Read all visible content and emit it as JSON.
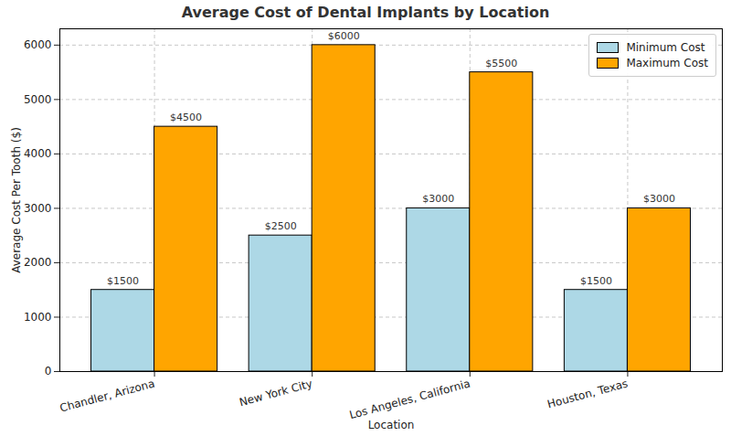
{
  "chart_data": {
    "type": "bar",
    "title": "Average Cost of Dental Implants by Location",
    "x_label": "Location",
    "y_label": "Average Cost Per Tooth ($)",
    "categories": [
      "Chandler, Arizona",
      "New York City",
      "Los Angeles, California",
      "Houston, Texas"
    ],
    "series": [
      {
        "name": "Minimum Cost",
        "color": "#add8e6",
        "values": [
          1500,
          2500,
          3000,
          1500
        ],
        "value_labels": [
          "$1500",
          "$2500",
          "$3000",
          "$1500"
        ]
      },
      {
        "name": "Maximum Cost",
        "color": "#ffa500",
        "values": [
          4500,
          6000,
          5500,
          3000
        ],
        "value_labels": [
          "$4500",
          "$6000",
          "$5500",
          "$3000"
        ]
      }
    ],
    "ylim": [
      0,
      6300
    ],
    "yticks": [
      0,
      1000,
      2000,
      3000,
      4000,
      5000,
      6000
    ],
    "grid": true,
    "legend": "upper right",
    "data_labels": true
  }
}
